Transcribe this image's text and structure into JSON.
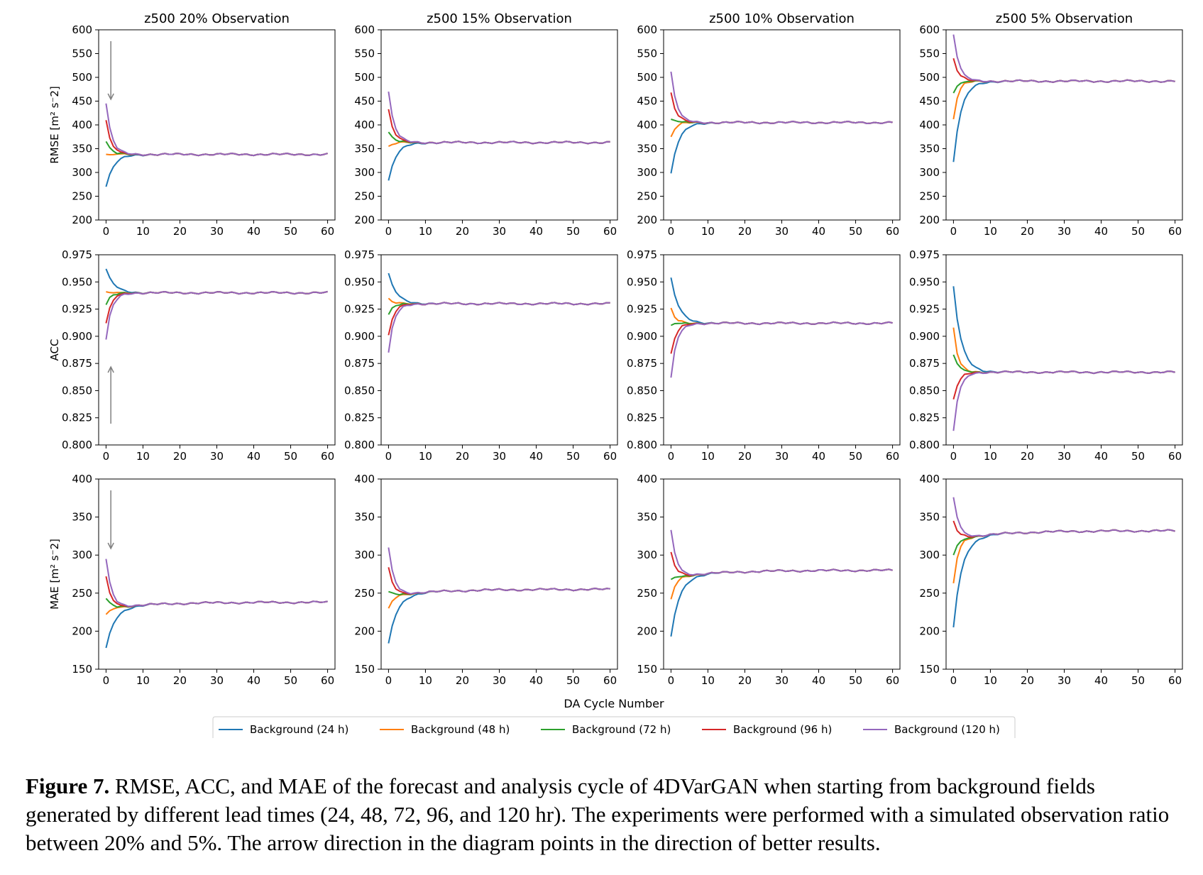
{
  "figure": {
    "x_label": "DA Cycle Number",
    "caption_label": "Figure 7.",
    "caption_text": "RMSE, ACC, and MAE of the forecast and analysis cycle of 4DVarGAN when starting from background fields generated by different lead times (24, 48, 72, 96, and 120 hr). The experiments were performed with a simulated observation ratio between 20% and 5%. The arrow direction in the diagram points in the direction of better results."
  },
  "chart_data": {
    "type": "line",
    "columns": [
      "z500 20% Observation",
      "z500 15% Observation",
      "z500 10% Observation",
      "z500 5% Observation"
    ],
    "rows": [
      {
        "metric": "RMSE",
        "ylabel": "RMSE [m² s⁻2]",
        "ylim": [
          200,
          600
        ],
        "yticks": [
          "200",
          "250",
          "300",
          "350",
          "400",
          "450",
          "500",
          "550",
          "600"
        ],
        "arrow": "down"
      },
      {
        "metric": "ACC",
        "ylabel": "ACC",
        "ylim": [
          0.8,
          0.975
        ],
        "yticks": [
          "0.800",
          "0.825",
          "0.850",
          "0.875",
          "0.900",
          "0.925",
          "0.950",
          "0.975"
        ],
        "arrow": "up"
      },
      {
        "metric": "MAE",
        "ylabel": "MAE [m² s⁻2]",
        "ylim": [
          150,
          400
        ],
        "yticks": [
          "150",
          "200",
          "250",
          "300",
          "350",
          "400"
        ],
        "arrow": "down"
      }
    ],
    "xlim": [
      -2,
      62
    ],
    "xticks": [
      "0",
      "10",
      "20",
      "30",
      "40",
      "50",
      "60"
    ],
    "grid": false,
    "legend_position": "bottom-center",
    "series": [
      {
        "name": "Background (24 h)",
        "color": "#1f77b4"
      },
      {
        "name": "Background (48 h)",
        "color": "#ff7f0e"
      },
      {
        "name": "Background (72 h)",
        "color": "#2ca02c"
      },
      {
        "name": "Background (96 h)",
        "color": "#d62728"
      },
      {
        "name": "Background (120 h)",
        "color": "#9467bd"
      }
    ],
    "panels": [
      {
        "row": 0,
        "col": 0,
        "plateau": 338,
        "start": [
          270,
          338,
          365,
          410,
          445
        ]
      },
      {
        "row": 0,
        "col": 1,
        "plateau": 363,
        "start": [
          283,
          355,
          385,
          433,
          470
        ]
      },
      {
        "row": 0,
        "col": 2,
        "plateau": 405,
        "start": [
          298,
          375,
          412,
          468,
          512
        ]
      },
      {
        "row": 0,
        "col": 3,
        "plateau": 492,
        "start": [
          322,
          412,
          467,
          540,
          590
        ]
      },
      {
        "row": 1,
        "col": 0,
        "plateau": 0.94,
        "start": [
          0.962,
          0.941,
          0.929,
          0.912,
          0.897
        ]
      },
      {
        "row": 1,
        "col": 1,
        "plateau": 0.93,
        "start": [
          0.958,
          0.935,
          0.92,
          0.901,
          0.885
        ]
      },
      {
        "row": 1,
        "col": 2,
        "plateau": 0.912,
        "start": [
          0.954,
          0.926,
          0.91,
          0.884,
          0.862
        ]
      },
      {
        "row": 1,
        "col": 3,
        "plateau": 0.867,
        "start": [
          0.946,
          0.908,
          0.883,
          0.842,
          0.813
        ]
      },
      {
        "row": 2,
        "col": 0,
        "plateau": 238,
        "start": [
          178,
          222,
          243,
          272,
          295
        ]
      },
      {
        "row": 2,
        "col": 1,
        "plateau": 255,
        "start": [
          184,
          230,
          252,
          284,
          310
        ]
      },
      {
        "row": 2,
        "col": 2,
        "plateau": 280,
        "start": [
          193,
          242,
          268,
          304,
          333
        ]
      },
      {
        "row": 2,
        "col": 3,
        "plateau": 332,
        "start": [
          205,
          263,
          300,
          345,
          376
        ]
      }
    ]
  }
}
